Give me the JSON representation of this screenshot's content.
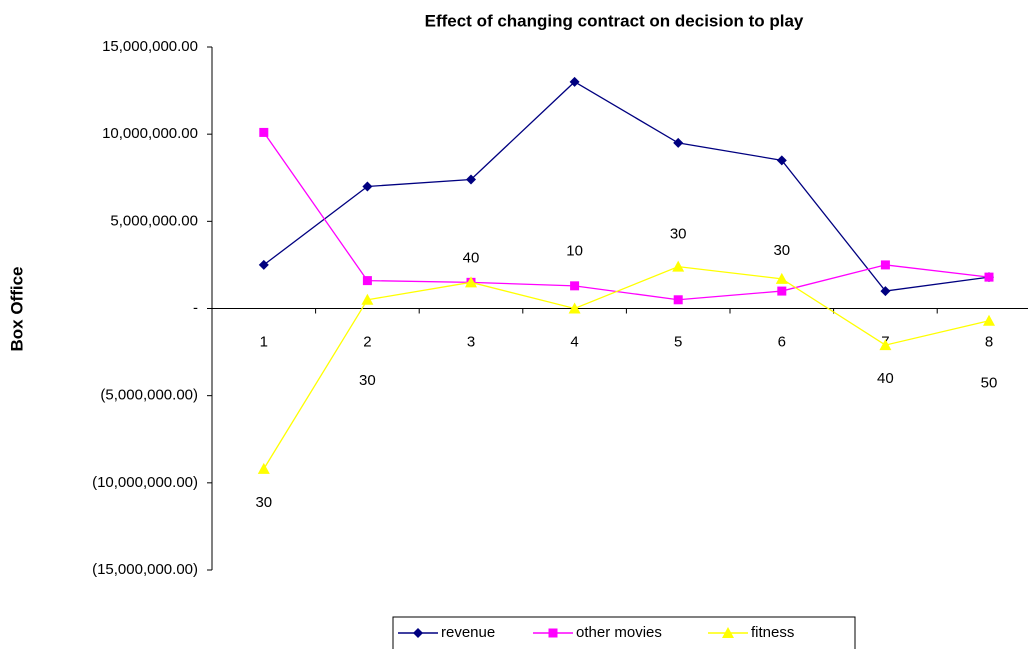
{
  "chart_data": {
    "type": "line",
    "title": "Effect of changing contract on decision to play",
    "y_label": "Box Office",
    "categories": [
      "1",
      "2",
      "3",
      "4",
      "5",
      "6",
      "7",
      "8"
    ],
    "series": [
      {
        "name": "revenue",
        "color": "#000080",
        "marker": "diamond",
        "values": [
          2500000,
          7000000,
          7400000,
          13000000,
          9500000,
          8500000,
          1000000,
          1800000
        ]
      },
      {
        "name": "other movies",
        "color": "#ff00ff",
        "marker": "square",
        "values": [
          10100000,
          1600000,
          1500000,
          1300000,
          500000,
          1000000,
          2500000,
          1800000
        ]
      },
      {
        "name": "fitness",
        "color": "#ffff00",
        "marker": "triangle",
        "values": [
          -9200000,
          500000,
          1500000,
          0,
          2400000,
          1700000,
          -2100000,
          -700000
        ],
        "point_labels": [
          30,
          30,
          40,
          10,
          30,
          30,
          40,
          50
        ]
      }
    ],
    "ylim": [
      -15000000,
      15000000
    ],
    "yticks": [
      {
        "value": -15000000,
        "label": "(15,000,000.00)"
      },
      {
        "value": -10000000,
        "label": "(10,000,000.00)"
      },
      {
        "value": -5000000,
        "label": "(5,000,000.00)"
      },
      {
        "value": 0,
        "label": "-"
      },
      {
        "value": 5000000,
        "label": "5,000,000.00"
      },
      {
        "value": 10000000,
        "label": "10,000,000.00"
      },
      {
        "value": 15000000,
        "label": "15,000,000.00"
      }
    ],
    "legend": "bottom"
  }
}
